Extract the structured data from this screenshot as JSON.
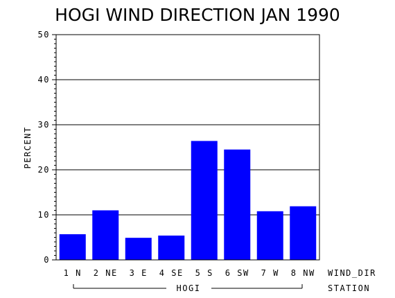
{
  "chart_data": {
    "type": "bar",
    "title": "HOGI WIND DIRECTION JAN 1990",
    "ylabel": "PERCENT",
    "xlabel": "WIND_DIR",
    "group_label": "STATION",
    "group_name": "HOGI",
    "categories": [
      "1 N",
      "2 NE",
      "3 E",
      "4 SE",
      "5 S",
      "6 SW",
      "7 W",
      "8 NW"
    ],
    "values": [
      5.7,
      11.0,
      4.9,
      5.4,
      26.4,
      24.5,
      10.8,
      11.9
    ],
    "ylim": [
      0,
      50
    ],
    "yticks": [
      "0",
      "10",
      "20",
      "30",
      "40",
      "50"
    ],
    "grid": true,
    "bar_color": "#0000ff"
  }
}
